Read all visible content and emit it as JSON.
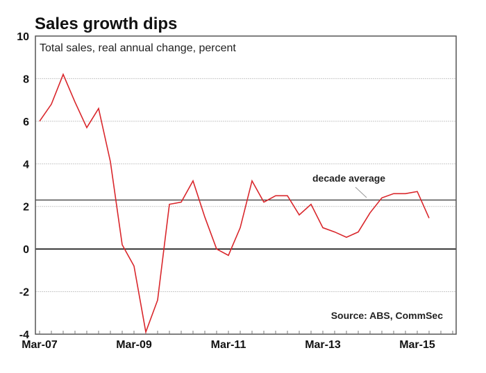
{
  "chart_data": {
    "type": "line",
    "title": "Sales growth dips",
    "subtitle": "Total sales, real annual change, percent",
    "xlabel": "",
    "ylabel": "",
    "ylim": [
      -4,
      10
    ],
    "yticks": [
      -4,
      -2,
      0,
      2,
      4,
      6,
      8,
      10
    ],
    "ytick_labels": [
      "-4",
      "-2",
      "0",
      "2",
      "4",
      "6",
      "8",
      "10"
    ],
    "x": [
      "Mar-07",
      "Jun-07",
      "Sep-07",
      "Dec-07",
      "Mar-08",
      "Jun-08",
      "Sep-08",
      "Dec-08",
      "Mar-09",
      "Jun-09",
      "Sep-09",
      "Dec-09",
      "Mar-10",
      "Jun-10",
      "Sep-10",
      "Dec-10",
      "Mar-11",
      "Jun-11",
      "Sep-11",
      "Dec-11",
      "Mar-12",
      "Jun-12",
      "Sep-12",
      "Dec-12",
      "Mar-13",
      "Jun-13",
      "Sep-13",
      "Dec-13",
      "Mar-14",
      "Jun-14",
      "Sep-14",
      "Dec-14",
      "Mar-15",
      "Jun-15"
    ],
    "xticks": [
      "Mar-07",
      "Mar-09",
      "Mar-11",
      "Mar-13",
      "Mar-15"
    ],
    "x_range_quarters": [
      0,
      37
    ],
    "series": [
      {
        "name": "Total sales, real annual change",
        "color": "#d9262b",
        "values": [
          6.0,
          6.8,
          8.2,
          6.9,
          5.7,
          6.6,
          4.1,
          0.2,
          -0.8,
          -3.9,
          -2.4,
          2.1,
          2.2,
          3.2,
          1.5,
          0.0,
          -0.3,
          1.0,
          3.2,
          2.2,
          2.5,
          2.5,
          1.6,
          2.1,
          1.0,
          0.8,
          0.55,
          0.8,
          1.7,
          2.4,
          2.6,
          2.6,
          2.7,
          1.45
        ]
      }
    ],
    "reference_lines": [
      {
        "name": "decade average",
        "value": 2.3,
        "color": "#333333"
      },
      {
        "name": "zero line",
        "value": 0,
        "color": "#111111"
      }
    ],
    "annotations": {
      "decade_average": "decade average",
      "source": "Source: ABS, CommSec"
    },
    "grid": true,
    "legend": "none"
  }
}
